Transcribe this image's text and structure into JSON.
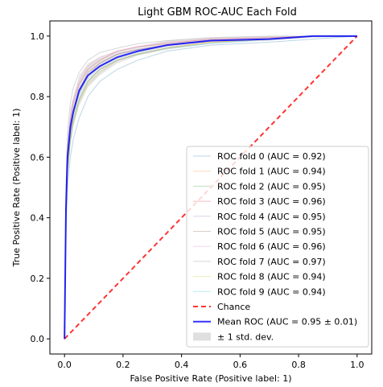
{
  "chart_data": {
    "type": "line",
    "title": "Light GBM ROC-AUC Each Fold",
    "xlabel": "False Positive Rate (Positive label: 1)",
    "ylabel": "True Positive Rate (Positive label: 1)",
    "xlim": [
      -0.05,
      1.05
    ],
    "ylim": [
      -0.05,
      1.05
    ],
    "xticks": [
      0.0,
      0.2,
      0.4,
      0.6,
      0.8,
      1.0
    ],
    "yticks": [
      0.0,
      0.2,
      0.4,
      0.6,
      0.8,
      1.0
    ],
    "xtick_labels": [
      "0.0",
      "0.2",
      "0.4",
      "0.6",
      "0.8",
      "1.0"
    ],
    "ytick_labels": [
      "0.0",
      "0.2",
      "0.4",
      "0.6",
      "0.8",
      "1.0"
    ],
    "grid": false,
    "legend_position": "lower-right",
    "series": [
      {
        "name": "ROC fold 0 (AUC = 0.92)",
        "color": "#1f77b4",
        "alpha": 0.3,
        "x": [
          0,
          0.005,
          0.01,
          0.02,
          0.03,
          0.05,
          0.08,
          0.12,
          0.18,
          0.25,
          0.35,
          0.5,
          0.7,
          0.85,
          1.0
        ],
        "y": [
          0,
          0.35,
          0.5,
          0.6,
          0.66,
          0.73,
          0.8,
          0.85,
          0.89,
          0.92,
          0.95,
          0.97,
          0.98,
          0.99,
          1.0
        ]
      },
      {
        "name": "ROC fold 1 (AUC = 0.94)",
        "color": "#ff7f0e",
        "alpha": 0.3,
        "x": [
          0,
          0.005,
          0.01,
          0.02,
          0.03,
          0.05,
          0.08,
          0.12,
          0.18,
          0.25,
          0.35,
          0.5,
          0.7,
          0.85,
          1.0
        ],
        "y": [
          0,
          0.4,
          0.55,
          0.66,
          0.72,
          0.79,
          0.85,
          0.89,
          0.92,
          0.94,
          0.96,
          0.98,
          0.99,
          1.0,
          1.0
        ]
      },
      {
        "name": "ROC fold 2 (AUC = 0.95)",
        "color": "#2ca02c",
        "alpha": 0.3,
        "x": [
          0,
          0.005,
          0.01,
          0.02,
          0.03,
          0.05,
          0.08,
          0.12,
          0.18,
          0.25,
          0.35,
          0.5,
          0.7,
          0.85,
          1.0
        ],
        "y": [
          0,
          0.42,
          0.58,
          0.68,
          0.74,
          0.81,
          0.87,
          0.9,
          0.93,
          0.95,
          0.97,
          0.985,
          0.99,
          1.0,
          1.0
        ]
      },
      {
        "name": "ROC fold 3 (AUC = 0.96)",
        "color": "#d62728",
        "alpha": 0.3,
        "x": [
          0,
          0.005,
          0.01,
          0.02,
          0.03,
          0.05,
          0.08,
          0.12,
          0.18,
          0.25,
          0.35,
          0.5,
          0.7,
          0.85,
          1.0
        ],
        "y": [
          0,
          0.45,
          0.62,
          0.72,
          0.78,
          0.84,
          0.89,
          0.92,
          0.95,
          0.965,
          0.975,
          0.99,
          0.995,
          1.0,
          1.0
        ]
      },
      {
        "name": "ROC fold 4 (AUC = 0.95)",
        "color": "#9467bd",
        "alpha": 0.3,
        "x": [
          0,
          0.005,
          0.01,
          0.02,
          0.03,
          0.05,
          0.08,
          0.12,
          0.18,
          0.25,
          0.35,
          0.5,
          0.7,
          0.85,
          1.0
        ],
        "y": [
          0,
          0.43,
          0.59,
          0.69,
          0.75,
          0.82,
          0.87,
          0.91,
          0.94,
          0.955,
          0.97,
          0.985,
          0.99,
          1.0,
          1.0
        ]
      },
      {
        "name": "ROC fold 5 (AUC = 0.95)",
        "color": "#8c564b",
        "alpha": 0.3,
        "x": [
          0,
          0.005,
          0.01,
          0.02,
          0.03,
          0.05,
          0.08,
          0.12,
          0.18,
          0.25,
          0.35,
          0.5,
          0.7,
          0.85,
          1.0
        ],
        "y": [
          0,
          0.41,
          0.57,
          0.68,
          0.75,
          0.82,
          0.88,
          0.91,
          0.94,
          0.955,
          0.97,
          0.985,
          0.99,
          1.0,
          1.0
        ]
      },
      {
        "name": "ROC fold 6 (AUC = 0.96)",
        "color": "#e377c2",
        "alpha": 0.3,
        "x": [
          0,
          0.005,
          0.01,
          0.02,
          0.03,
          0.05,
          0.08,
          0.12,
          0.18,
          0.25,
          0.35,
          0.5,
          0.7,
          0.85,
          1.0
        ],
        "y": [
          0,
          0.46,
          0.63,
          0.73,
          0.79,
          0.85,
          0.9,
          0.93,
          0.95,
          0.965,
          0.98,
          0.99,
          0.995,
          1.0,
          1.0
        ]
      },
      {
        "name": "ROC fold 7 (AUC = 0.97)",
        "color": "#7f7f7f",
        "alpha": 0.3,
        "x": [
          0,
          0.005,
          0.01,
          0.02,
          0.03,
          0.05,
          0.08,
          0.12,
          0.18,
          0.25,
          0.35,
          0.5,
          0.7,
          0.85,
          1.0
        ],
        "y": [
          0,
          0.5,
          0.68,
          0.78,
          0.83,
          0.88,
          0.92,
          0.945,
          0.96,
          0.975,
          0.985,
          0.995,
          1.0,
          1.0,
          1.0
        ]
      },
      {
        "name": "ROC fold 8 (AUC = 0.94)",
        "color": "#bcbd22",
        "alpha": 0.3,
        "x": [
          0,
          0.005,
          0.01,
          0.02,
          0.03,
          0.05,
          0.08,
          0.12,
          0.18,
          0.25,
          0.35,
          0.5,
          0.7,
          0.85,
          1.0
        ],
        "y": [
          0,
          0.39,
          0.54,
          0.65,
          0.71,
          0.78,
          0.84,
          0.88,
          0.92,
          0.94,
          0.96,
          0.98,
          0.99,
          1.0,
          1.0
        ]
      },
      {
        "name": "ROC fold 9 (AUC = 0.94)",
        "color": "#17becf",
        "alpha": 0.3,
        "x": [
          0,
          0.005,
          0.01,
          0.02,
          0.03,
          0.05,
          0.08,
          0.12,
          0.18,
          0.25,
          0.35,
          0.5,
          0.7,
          0.85,
          1.0
        ],
        "y": [
          0,
          0.4,
          0.55,
          0.66,
          0.72,
          0.79,
          0.85,
          0.89,
          0.92,
          0.94,
          0.96,
          0.975,
          0.99,
          1.0,
          1.0
        ]
      },
      {
        "name": "Chance",
        "color": "#ff0000",
        "alpha": 0.8,
        "dashed": true,
        "x": [
          0,
          1
        ],
        "y": [
          0,
          1
        ]
      },
      {
        "name": "Mean ROC (AUC = 0.95 ± 0.01)",
        "color": "#0000ff",
        "alpha": 0.8,
        "width": 2,
        "x": [
          0,
          0.005,
          0.01,
          0.02,
          0.03,
          0.05,
          0.08,
          0.12,
          0.18,
          0.25,
          0.35,
          0.5,
          0.7,
          0.85,
          1.0
        ],
        "y": [
          0,
          0.43,
          0.6,
          0.7,
          0.75,
          0.82,
          0.87,
          0.9,
          0.93,
          0.95,
          0.97,
          0.985,
          0.99,
          1.0,
          1.0
        ]
      }
    ],
    "band": {
      "name": "± 1 std. dev.",
      "color": "#808080",
      "alpha": 0.2,
      "x": [
        0,
        0.005,
        0.01,
        0.02,
        0.03,
        0.05,
        0.08,
        0.12,
        0.18,
        0.25,
        0.35,
        0.5,
        0.7,
        0.85,
        1.0
      ],
      "lower": [
        0,
        0.38,
        0.53,
        0.64,
        0.7,
        0.77,
        0.83,
        0.87,
        0.91,
        0.935,
        0.955,
        0.975,
        0.985,
        0.995,
        1.0
      ],
      "upper": [
        0,
        0.48,
        0.67,
        0.76,
        0.8,
        0.87,
        0.91,
        0.93,
        0.95,
        0.965,
        0.985,
        0.995,
        1.0,
        1.0,
        1.0
      ]
    }
  }
}
